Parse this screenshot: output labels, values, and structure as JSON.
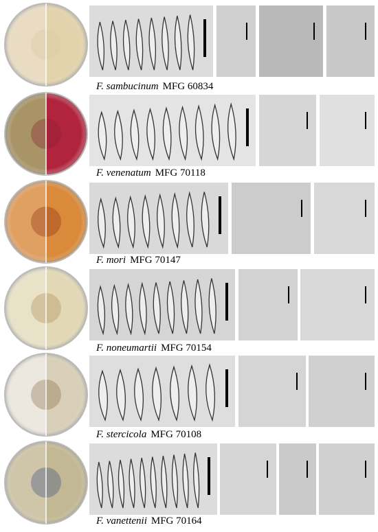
{
  "panels": [
    {
      "species": "F. sambucinum",
      "strain": "MFG 60834"
    },
    {
      "species": "F. venenatum",
      "strain": "MFG 70118"
    },
    {
      "species": "F. mori",
      "strain": "MFG 70147"
    },
    {
      "species": "F. noneumartii",
      "strain": "MFG 70154"
    },
    {
      "species": "F. stercicola",
      "strain": "MFG 70108"
    },
    {
      "species": "F. vanettenii",
      "strain": "MFG 70164"
    }
  ]
}
